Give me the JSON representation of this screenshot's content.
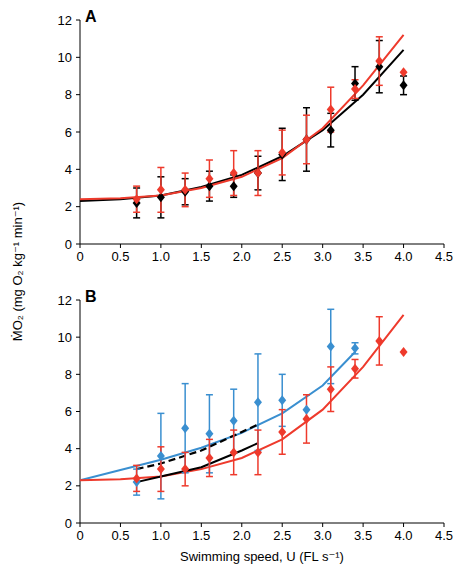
{
  "chart_data": [
    {
      "type": "scatter",
      "title": "A",
      "y_label": "ṀO₂ (mg O₂ kg⁻¹ min⁻¹)",
      "xlim": [
        0,
        4.5
      ],
      "ylim": [
        0,
        12
      ],
      "xticks": [
        0,
        0.5,
        {
          "value": 1,
          "label": "1.0"
        },
        1.5,
        {
          "value": 2,
          "label": "2.0"
        },
        2.5,
        {
          "value": 3,
          "label": "3.0"
        },
        3.5,
        {
          "value": 4,
          "label": "4.0"
        },
        4.5
      ],
      "yticks": [
        0,
        2,
        4,
        6,
        8,
        10,
        12
      ],
      "grid": false,
      "series": [
        {
          "type": "line",
          "color": "#000000",
          "line_style": "solid",
          "x": [
            0,
            0.5,
            1,
            1.5,
            2,
            2.5,
            3,
            3.5,
            4
          ],
          "values": [
            2.3,
            2.4,
            2.6,
            3.05,
            3.7,
            4.7,
            6.1,
            8.0,
            10.4
          ]
        },
        {
          "type": "line",
          "color": "#ee3a2c",
          "line_style": "solid",
          "x": [
            0,
            0.5,
            1,
            1.5,
            2,
            2.5,
            3,
            3.5,
            4
          ],
          "values": [
            2.4,
            2.45,
            2.6,
            3.0,
            3.6,
            4.6,
            6.2,
            8.5,
            11.2
          ]
        },
        {
          "type": "scatter",
          "color": "#000000",
          "marker": "diamond",
          "x": [
            0.7,
            1.0,
            1.3,
            1.6,
            1.9,
            2.2,
            2.5,
            2.8,
            3.1,
            3.4,
            3.7,
            4.0
          ],
          "values": [
            2.2,
            2.5,
            2.8,
            3.1,
            3.1,
            3.8,
            4.8,
            5.6,
            6.1,
            8.6,
            9.5,
            8.5
          ],
          "errors": [
            0.8,
            1.1,
            0.7,
            0.8,
            0.6,
            0.9,
            1.4,
            1.7,
            0.9,
            0.9,
            1.4,
            0.5
          ]
        },
        {
          "type": "scatter",
          "color": "#ee3a2c",
          "marker": "diamond",
          "x": [
            0.7,
            1.0,
            1.3,
            1.6,
            1.9,
            2.2,
            2.5,
            2.8,
            3.1,
            3.4,
            3.7,
            4.0
          ],
          "values": [
            2.4,
            2.9,
            2.9,
            3.5,
            3.8,
            3.8,
            4.9,
            5.6,
            7.2,
            8.3,
            9.8,
            9.2
          ],
          "errors": [
            0.7,
            1.2,
            0.9,
            1.0,
            1.2,
            1.2,
            1.2,
            1.3,
            1.2,
            0.5,
            1.3,
            null
          ]
        }
      ]
    },
    {
      "type": "scatter",
      "title": "B",
      "x_label": "Swimming speed, U (FL s⁻¹)",
      "xlim": [
        0,
        4.5
      ],
      "ylim": [
        0,
        12
      ],
      "xticks": [
        0,
        0.5,
        {
          "value": 1,
          "label": "1.0"
        },
        1.5,
        {
          "value": 2,
          "label": "2.0"
        },
        2.5,
        {
          "value": 3,
          "label": "3.0"
        },
        3.5,
        {
          "value": 4,
          "label": "4.0"
        },
        4.5
      ],
      "yticks": [
        0,
        2,
        4,
        6,
        8,
        10,
        12
      ],
      "grid": false,
      "series": [
        {
          "type": "line",
          "color": "#3a8fd0",
          "line_style": "solid",
          "x": [
            0,
            0.5,
            1,
            1.5,
            2,
            2.5,
            3,
            3.4
          ],
          "values": [
            2.3,
            2.85,
            3.4,
            4.05,
            4.85,
            5.9,
            7.4,
            9.2
          ]
        },
        {
          "type": "line",
          "color": "#ee3a2c",
          "line_style": "solid",
          "x": [
            0,
            0.5,
            1,
            1.5,
            2,
            2.5,
            3,
            3.5,
            4
          ],
          "values": [
            2.3,
            2.35,
            2.5,
            2.9,
            3.5,
            4.5,
            6.1,
            8.4,
            11.2
          ]
        },
        {
          "type": "line",
          "color": "#000000",
          "line_style": "solid",
          "x": [
            0.7,
            1.0,
            1.5,
            2.0,
            2.2
          ],
          "values": [
            2.2,
            2.5,
            3.0,
            3.9,
            4.3
          ]
        },
        {
          "type": "line",
          "color": "#000000",
          "line_style": "dashed",
          "x": [
            0.7,
            1.0,
            1.5,
            2.0,
            2.2
          ],
          "values": [
            2.9,
            3.2,
            3.9,
            4.9,
            5.3
          ]
        },
        {
          "type": "scatter",
          "color": "#3a8fd0",
          "marker": "diamond",
          "x": [
            0.7,
            1.0,
            1.3,
            1.6,
            1.9,
            2.2,
            2.5,
            2.8,
            3.1,
            3.4
          ],
          "values": [
            2.2,
            3.6,
            5.1,
            4.8,
            5.5,
            6.5,
            6.6,
            6.1,
            9.5,
            9.4
          ],
          "errors": [
            0.7,
            2.3,
            2.4,
            2.1,
            1.7,
            2.6,
            1.4,
            null,
            2.0,
            0.3
          ]
        },
        {
          "type": "scatter",
          "color": "#ee3a2c",
          "marker": "diamond",
          "x": [
            0.7,
            1.0,
            1.3,
            1.6,
            1.9,
            2.2,
            2.5,
            2.8,
            3.1,
            3.4,
            3.7,
            4.0
          ],
          "values": [
            2.4,
            2.9,
            2.9,
            3.5,
            3.8,
            3.8,
            4.9,
            5.6,
            7.2,
            8.3,
            9.8,
            9.2
          ],
          "errors": [
            0.7,
            1.2,
            0.9,
            1.0,
            1.2,
            1.2,
            1.2,
            1.3,
            1.2,
            0.5,
            1.3,
            null
          ]
        }
      ]
    }
  ]
}
